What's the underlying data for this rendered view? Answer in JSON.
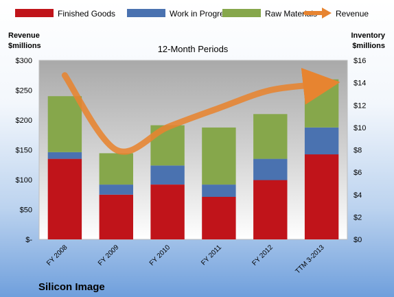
{
  "chart_data": {
    "type": "bar",
    "stacked": true,
    "title": "12-Month Periods",
    "company": "Silicon Image",
    "categories": [
      "FY 2008",
      "FY 2009",
      "FY 2010",
      "FY 2011",
      "FY 2012",
      "TTM 3-2013"
    ],
    "series": [
      {
        "name": "Finished Goods",
        "axis": "right",
        "color": "#c0141a",
        "values": [
          7.2,
          4.0,
          4.9,
          3.8,
          5.3,
          7.6
        ]
      },
      {
        "name": "Work in Progress",
        "axis": "right",
        "color": "#4a72b0",
        "values": [
          0.6,
          0.9,
          1.7,
          1.1,
          1.9,
          2.4
        ]
      },
      {
        "name": "Raw Materials",
        "axis": "right",
        "color": "#86a74b",
        "values": [
          5.0,
          2.8,
          3.6,
          5.1,
          4.0,
          4.3
        ]
      }
    ],
    "line_series": {
      "name": "Revenue",
      "axis": "left",
      "color": "#e78430",
      "values": [
        275,
        150,
        188,
        220,
        250,
        260
      ]
    },
    "left_axis": {
      "label_line1": "Revenue",
      "label_line2": "$millions",
      "min": 0,
      "max": 300,
      "ticks": [
        "$-",
        "$50",
        "$100",
        "$150",
        "$200",
        "$250",
        "$300"
      ]
    },
    "right_axis": {
      "label_line1": "Inventory",
      "label_line2": "$millions",
      "min": 0,
      "max": 16,
      "ticks": [
        "$0",
        "$2",
        "$4",
        "$6",
        "$8",
        "$10",
        "$12",
        "$14",
        "$16"
      ]
    },
    "legend_position": "top",
    "grid": false
  }
}
